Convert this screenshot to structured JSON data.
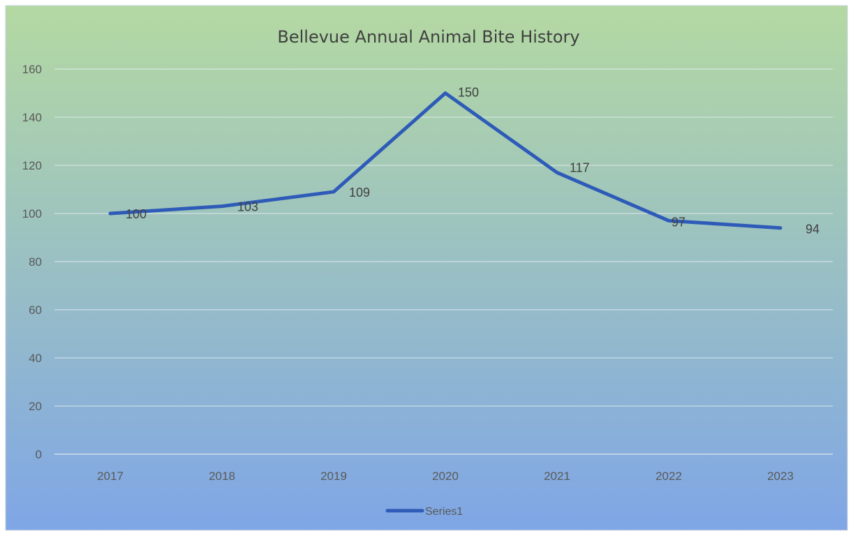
{
  "chart_data": {
    "type": "line",
    "title": "Bellevue Annual Animal Bite History",
    "xlabel": "",
    "ylabel": "",
    "categories": [
      "2017",
      "2018",
      "2019",
      "2020",
      "2021",
      "2022",
      "2023"
    ],
    "series": [
      {
        "name": "Series1",
        "values": [
          100,
          103,
          109,
          150,
          117,
          97,
          94
        ],
        "color": "#2e5bb8"
      }
    ],
    "ylim": [
      0,
      160
    ],
    "yticks": [
      "0",
      "20",
      "40",
      "60",
      "80",
      "100",
      "120",
      "140",
      "160"
    ],
    "grid": true,
    "legend_position": "bottom",
    "background_gradient": [
      "#b4d9a2",
      "#7fa6e6"
    ]
  }
}
